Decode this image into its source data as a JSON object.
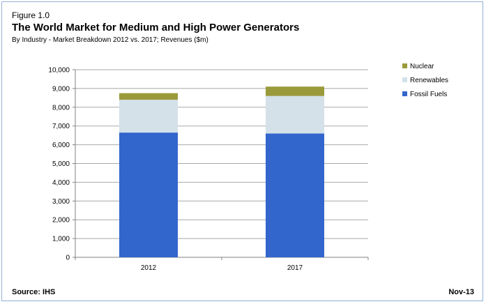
{
  "figure_label": "Figure 1.0",
  "title": "The World Market for Medium and High Power Generators",
  "subtitle": "By Industry - Market Breakdown 2012 vs. 2017; Revenues ($m)",
  "source": "Source: IHS",
  "date": "Nov-13",
  "colors": {
    "nuclear": "#9a9a3a",
    "renewables": "#d4e1e9",
    "fossil": "#3366cc",
    "grid": "#a8a8a8",
    "axis": "#808080"
  },
  "chart_data": {
    "type": "bar",
    "stacked": true,
    "categories": [
      "2012",
      "2017"
    ],
    "series": [
      {
        "name": "Fossil Fuels",
        "values": [
          6650,
          6600
        ]
      },
      {
        "name": "Renewables",
        "values": [
          1750,
          2000
        ]
      },
      {
        "name": "Nuclear",
        "values": [
          350,
          500
        ]
      }
    ],
    "ylim": [
      0,
      10000
    ],
    "yticks": [
      0,
      1000,
      2000,
      3000,
      4000,
      5000,
      6000,
      7000,
      8000,
      9000,
      10000
    ],
    "ytick_labels": [
      "0",
      "1,000",
      "2,000",
      "3,000",
      "4,000",
      "5,000",
      "6,000",
      "7,000",
      "8,000",
      "9,000",
      "10,000"
    ],
    "grid": true,
    "legend": {
      "placement": "right",
      "entries": [
        "Nuclear",
        "Renewables",
        "Fossil Fuels"
      ]
    }
  }
}
